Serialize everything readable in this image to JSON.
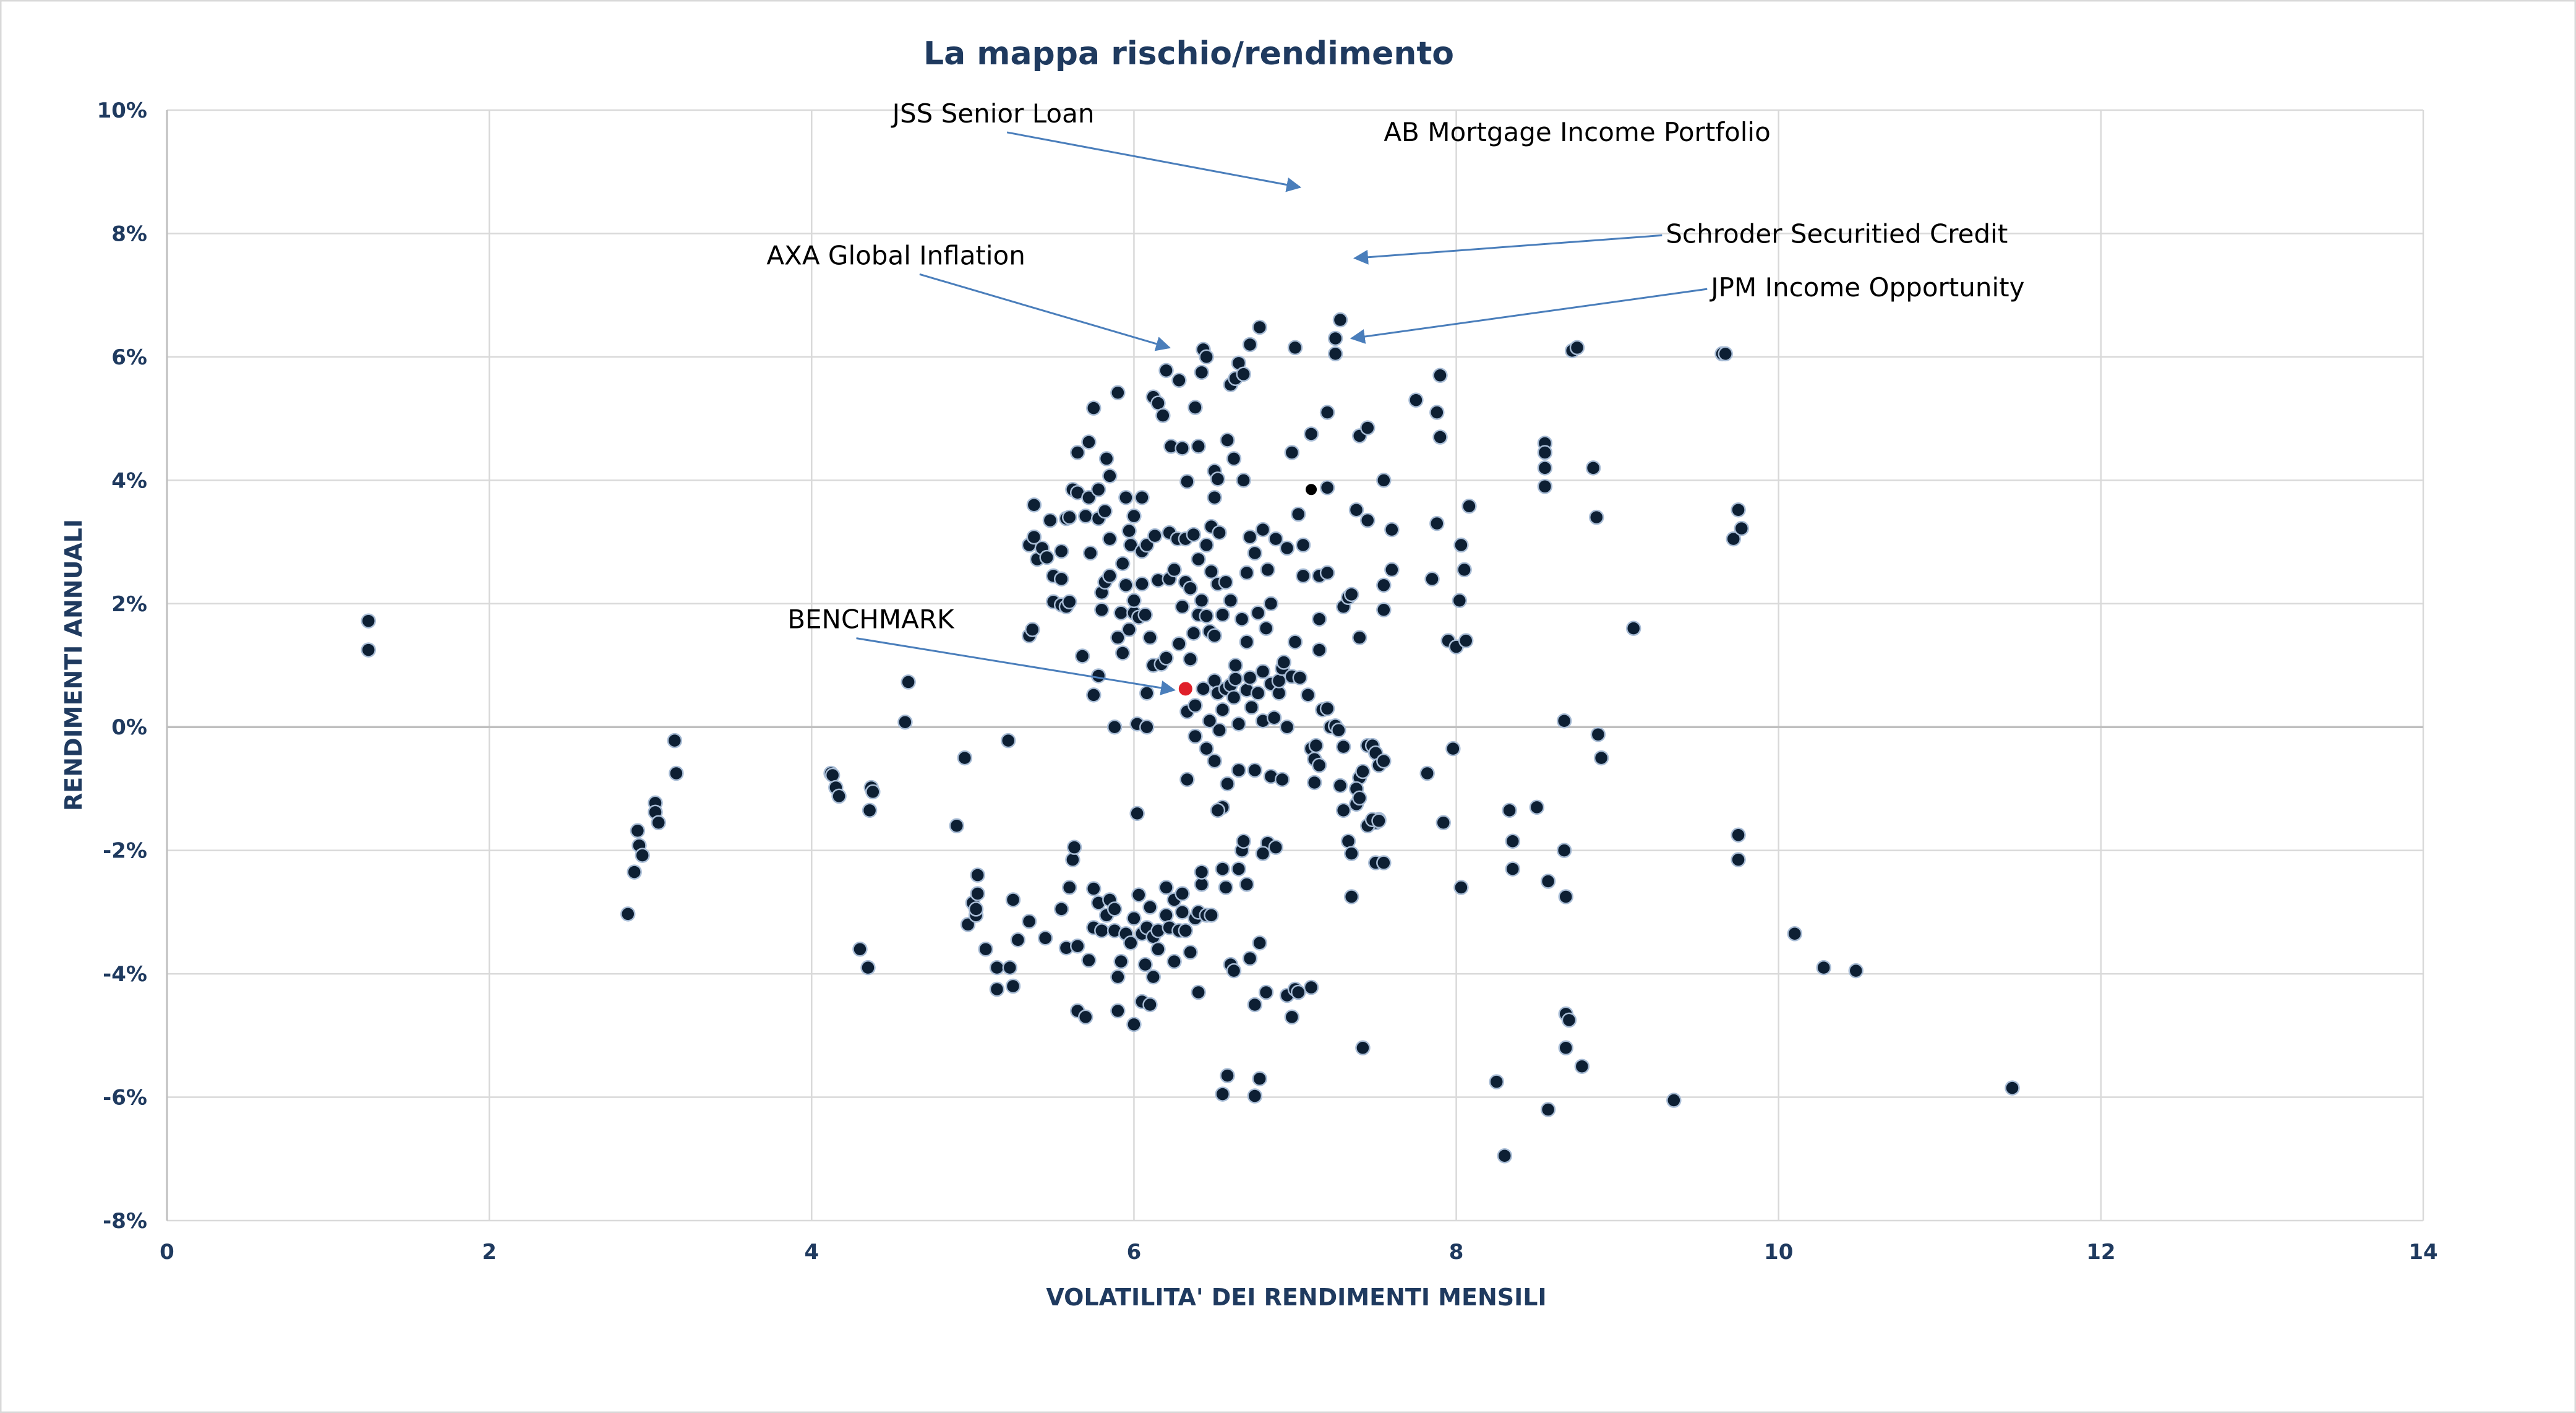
{
  "chart_data": {
    "type": "scatter",
    "title": "La mappa rischio/rendimento",
    "xlabel": "VOLATILITA' DEI RENDIMENTI MENSILI",
    "ylabel": "RENDIMENTI ANNUALI",
    "xlim": [
      0,
      14
    ],
    "ylim": [
      -8,
      10
    ],
    "x_ticks": [
      "0",
      "2",
      "4",
      "6",
      "8",
      "10",
      "12",
      "14"
    ],
    "y_ticks": [
      "10%",
      "8%",
      "6%",
      "4%",
      "2%",
      "0%",
      "-2%",
      "-4%",
      "-6%",
      "-8%"
    ],
    "grid": true,
    "colors": {
      "point": "#0d1f33",
      "point_edge": "#a9bdd6",
      "benchmark": "#e0202a",
      "arrow": "#4a7ebb",
      "grid": "#d9d9d9",
      "text": "#1f3a5f"
    },
    "points": [
      [
        1.25,
        1.72
      ],
      [
        1.25,
        1.25
      ],
      [
        2.86,
        -3.03
      ],
      [
        2.9,
        -2.35
      ],
      [
        2.92,
        -1.68
      ],
      [
        2.93,
        -1.92
      ],
      [
        2.95,
        -2.08
      ],
      [
        3.03,
        -1.23
      ],
      [
        3.03,
        -1.38
      ],
      [
        3.05,
        -1.55
      ],
      [
        3.15,
        -0.22
      ],
      [
        3.16,
        -0.75
      ],
      [
        4.12,
        -0.75
      ],
      [
        4.13,
        -0.78
      ],
      [
        4.15,
        -0.98
      ],
      [
        4.17,
        -1.12
      ],
      [
        4.3,
        -3.6
      ],
      [
        4.35,
        -3.9
      ],
      [
        4.36,
        -1.35
      ],
      [
        4.37,
        -0.98
      ],
      [
        4.38,
        -1.05
      ],
      [
        4.58,
        0.08
      ],
      [
        4.6,
        0.73
      ],
      [
        4.9,
        -1.6
      ],
      [
        4.95,
        -0.5
      ],
      [
        4.97,
        -3.2
      ],
      [
        5.0,
        -2.85
      ],
      [
        5.02,
        -3.05
      ],
      [
        5.02,
        -2.95
      ],
      [
        5.03,
        -2.7
      ],
      [
        5.03,
        -2.4
      ],
      [
        5.08,
        -3.6
      ],
      [
        5.15,
        -3.9
      ],
      [
        5.15,
        -4.25
      ],
      [
        5.22,
        -0.22
      ],
      [
        5.23,
        -3.9
      ],
      [
        5.25,
        -2.8
      ],
      [
        5.25,
        -4.2
      ],
      [
        5.28,
        -3.45
      ],
      [
        5.35,
        -3.15
      ],
      [
        5.35,
        1.48
      ],
      [
        5.37,
        1.58
      ],
      [
        5.35,
        2.95
      ],
      [
        5.38,
        3.08
      ],
      [
        5.38,
        3.6
      ],
      [
        5.4,
        2.72
      ],
      [
        5.43,
        2.9
      ],
      [
        5.46,
        2.75
      ],
      [
        5.48,
        3.35
      ],
      [
        5.5,
        2.45
      ],
      [
        5.5,
        2.03
      ],
      [
        5.55,
        1.98
      ],
      [
        5.55,
        2.85
      ],
      [
        5.55,
        2.4
      ],
      [
        5.58,
        1.95
      ],
      [
        5.58,
        3.38
      ],
      [
        5.6,
        3.4
      ],
      [
        5.6,
        2.03
      ],
      [
        5.45,
        -3.42
      ],
      [
        5.55,
        -2.95
      ],
      [
        5.58,
        -3.58
      ],
      [
        5.6,
        -2.6
      ],
      [
        5.62,
        -2.15
      ],
      [
        5.63,
        -1.95
      ],
      [
        5.65,
        -3.55
      ],
      [
        5.65,
        -4.6
      ],
      [
        5.7,
        -4.7
      ],
      [
        5.72,
        -3.78
      ],
      [
        5.62,
        3.85
      ],
      [
        5.65,
        3.8
      ],
      [
        5.65,
        4.45
      ],
      [
        5.68,
        1.15
      ],
      [
        5.7,
        3.42
      ],
      [
        5.72,
        3.72
      ],
      [
        5.72,
        4.62
      ],
      [
        5.73,
        2.82
      ],
      [
        5.75,
        5.17
      ],
      [
        5.75,
        0.52
      ],
      [
        5.78,
        0.83
      ],
      [
        5.78,
        3.38
      ],
      [
        5.78,
        3.85
      ],
      [
        5.8,
        1.9
      ],
      [
        5.8,
        2.18
      ],
      [
        5.82,
        3.5
      ],
      [
        5.82,
        2.35
      ],
      [
        5.83,
        4.35
      ],
      [
        5.85,
        3.05
      ],
      [
        5.85,
        4.07
      ],
      [
        5.85,
        2.45
      ],
      [
        5.75,
        -3.25
      ],
      [
        5.75,
        -2.62
      ],
      [
        5.78,
        -2.85
      ],
      [
        5.8,
        -3.3
      ],
      [
        5.83,
        -3.05
      ],
      [
        5.85,
        -2.8
      ],
      [
        5.88,
        -3.3
      ],
      [
        5.88,
        -2.95
      ],
      [
        5.9,
        -4.05
      ],
      [
        5.92,
        -3.8
      ],
      [
        5.9,
        -4.6
      ],
      [
        5.95,
        -3.35
      ],
      [
        5.88,
        0.0
      ],
      [
        5.9,
        5.42
      ],
      [
        5.9,
        1.45
      ],
      [
        5.92,
        1.85
      ],
      [
        5.93,
        1.2
      ],
      [
        5.93,
        2.65
      ],
      [
        5.95,
        3.72
      ],
      [
        5.95,
        2.3
      ],
      [
        5.97,
        3.18
      ],
      [
        5.97,
        1.58
      ],
      [
        5.98,
        2.95
      ],
      [
        6.0,
        1.85
      ],
      [
        6.0,
        3.42
      ],
      [
        6.0,
        2.05
      ],
      [
        6.02,
        0.05
      ],
      [
        6.02,
        -1.4
      ],
      [
        6.03,
        1.78
      ],
      [
        6.05,
        2.32
      ],
      [
        6.05,
        2.85
      ],
      [
        6.05,
        3.72
      ],
      [
        6.07,
        1.82
      ],
      [
        5.98,
        -3.5
      ],
      [
        6.0,
        -3.1
      ],
      [
        6.0,
        -4.82
      ],
      [
        6.03,
        -2.72
      ],
      [
        6.05,
        -3.35
      ],
      [
        6.05,
        -4.45
      ],
      [
        6.07,
        -3.85
      ],
      [
        6.08,
        -3.25
      ],
      [
        6.1,
        -2.92
      ],
      [
        6.1,
        -4.5
      ],
      [
        6.12,
        -3.4
      ],
      [
        6.12,
        -4.05
      ],
      [
        6.15,
        -3.3
      ],
      [
        6.15,
        -3.6
      ],
      [
        6.2,
        -2.6
      ],
      [
        6.2,
        -3.05
      ],
      [
        6.22,
        -3.25
      ],
      [
        6.25,
        -2.8
      ],
      [
        6.25,
        -3.8
      ],
      [
        6.28,
        -3.3
      ],
      [
        6.3,
        -3.0
      ],
      [
        6.3,
        -2.7
      ],
      [
        6.32,
        -3.3
      ],
      [
        6.35,
        -3.65
      ],
      [
        6.38,
        -3.1
      ],
      [
        6.4,
        -3.0
      ],
      [
        6.4,
        -4.3
      ],
      [
        6.42,
        -2.55
      ],
      [
        6.42,
        -2.35
      ],
      [
        6.45,
        -3.05
      ],
      [
        6.48,
        -3.05
      ],
      [
        6.08,
        2.95
      ],
      [
        6.08,
        0.0
      ],
      [
        6.08,
        0.55
      ],
      [
        6.1,
        1.45
      ],
      [
        6.12,
        5.35
      ],
      [
        6.12,
        1.0
      ],
      [
        6.13,
        3.1
      ],
      [
        6.15,
        5.25
      ],
      [
        6.15,
        2.38
      ],
      [
        6.17,
        1.02
      ],
      [
        6.18,
        5.05
      ],
      [
        6.2,
        1.12
      ],
      [
        6.2,
        5.78
      ],
      [
        6.22,
        2.4
      ],
      [
        6.22,
        3.15
      ],
      [
        6.23,
        4.55
      ],
      [
        6.25,
        2.55
      ],
      [
        6.27,
        3.05
      ],
      [
        6.28,
        1.35
      ],
      [
        6.28,
        5.62
      ],
      [
        6.3,
        4.52
      ],
      [
        6.3,
        1.95
      ],
      [
        6.32,
        2.35
      ],
      [
        6.32,
        3.05
      ],
      [
        6.33,
        0.25
      ],
      [
        6.33,
        -0.85
      ],
      [
        6.33,
        3.98
      ],
      [
        6.35,
        1.1
      ],
      [
        6.35,
        2.25
      ],
      [
        6.37,
        3.12
      ],
      [
        6.37,
        1.52
      ],
      [
        6.38,
        0.35
      ],
      [
        6.38,
        -0.15
      ],
      [
        6.38,
        5.18
      ],
      [
        6.4,
        4.55
      ],
      [
        6.4,
        1.82
      ],
      [
        6.4,
        2.72
      ],
      [
        6.42,
        5.75
      ],
      [
        6.42,
        2.05
      ],
      [
        6.43,
        6.12
      ],
      [
        6.43,
        0.62
      ],
      [
        6.45,
        1.8
      ],
      [
        6.45,
        2.95
      ],
      [
        6.45,
        -0.35
      ],
      [
        6.45,
        6.0
      ],
      [
        6.47,
        0.1
      ],
      [
        6.47,
        1.55
      ],
      [
        6.48,
        2.52
      ],
      [
        6.48,
        3.25
      ],
      [
        6.5,
        4.15
      ],
      [
        6.5,
        3.72
      ],
      [
        6.5,
        1.48
      ],
      [
        6.5,
        -0.55
      ],
      [
        6.5,
        0.75
      ],
      [
        6.52,
        4.02
      ],
      [
        6.52,
        0.55
      ],
      [
        6.52,
        2.32
      ],
      [
        6.53,
        3.15
      ],
      [
        6.53,
        -0.05
      ],
      [
        6.55,
        1.82
      ],
      [
        6.55,
        0.28
      ],
      [
        6.55,
        -1.3
      ],
      [
        6.57,
        2.35
      ],
      [
        6.57,
        0.62
      ],
      [
        6.58,
        4.65
      ],
      [
        6.58,
        -0.92
      ],
      [
        6.6,
        0.68
      ],
      [
        6.6,
        2.05
      ],
      [
        6.6,
        5.55
      ],
      [
        6.62,
        0.48
      ],
      [
        6.62,
        4.35
      ],
      [
        6.63,
        5.65
      ],
      [
        6.63,
        0.78
      ],
      [
        6.63,
        1.0
      ],
      [
        6.65,
        5.9
      ],
      [
        6.65,
        0.05
      ],
      [
        6.65,
        -0.7
      ],
      [
        6.67,
        -2.0
      ],
      [
        6.67,
        1.75
      ],
      [
        6.68,
        4.0
      ],
      [
        6.68,
        5.72
      ],
      [
        6.7,
        1.38
      ],
      [
        6.7,
        0.6
      ],
      [
        6.7,
        2.5
      ],
      [
        6.72,
        6.2
      ],
      [
        6.72,
        3.08
      ],
      [
        6.72,
        0.8
      ],
      [
        6.73,
        0.32
      ],
      [
        6.75,
        -0.7
      ],
      [
        6.75,
        2.82
      ],
      [
        6.77,
        0.55
      ],
      [
        6.77,
        1.85
      ],
      [
        6.78,
        6.48
      ],
      [
        6.8,
        3.2
      ],
      [
        6.8,
        0.1
      ],
      [
        6.8,
        0.9
      ],
      [
        6.82,
        1.6
      ],
      [
        6.83,
        -1.88
      ],
      [
        6.83,
        2.55
      ],
      [
        6.85,
        0.7
      ],
      [
        6.85,
        2.0
      ],
      [
        6.85,
        -0.8
      ],
      [
        6.87,
        0.15
      ],
      [
        6.88,
        3.05
      ],
      [
        6.88,
        -1.95
      ],
      [
        6.9,
        0.55
      ],
      [
        6.9,
        0.75
      ],
      [
        6.92,
        0.95
      ],
      [
        6.92,
        -0.85
      ],
      [
        6.93,
        1.05
      ],
      [
        6.95,
        2.9
      ],
      [
        6.95,
        0.0
      ],
      [
        6.52,
        -1.35
      ],
      [
        6.55,
        -2.3
      ],
      [
        6.57,
        -2.6
      ],
      [
        6.6,
        -3.85
      ],
      [
        6.62,
        -3.95
      ],
      [
        6.65,
        -2.3
      ],
      [
        6.68,
        -1.85
      ],
      [
        6.7,
        -2.55
      ],
      [
        6.72,
        -3.75
      ],
      [
        6.75,
        -4.5
      ],
      [
        6.78,
        -3.5
      ],
      [
        6.8,
        -2.05
      ],
      [
        6.82,
        -4.3
      ],
      [
        6.55,
        -5.95
      ],
      [
        6.58,
        -5.65
      ],
      [
        6.75,
        -5.98
      ],
      [
        6.78,
        -5.7
      ],
      [
        6.95,
        -4.35
      ],
      [
        6.98,
        -4.7
      ],
      [
        7.0,
        -4.25
      ],
      [
        7.02,
        -4.3
      ],
      [
        7.1,
        -4.22
      ],
      [
        6.98,
        0.82
      ],
      [
        7.0,
        1.38
      ],
      [
        7.03,
        0.8
      ],
      [
        7.05,
        2.45
      ],
      [
        7.08,
        0.52
      ],
      [
        7.1,
        -0.35
      ],
      [
        7.12,
        -0.52
      ],
      [
        7.15,
        -0.62
      ],
      [
        7.17,
        0.28
      ],
      [
        7.2,
        0.3
      ],
      [
        7.22,
        0.0
      ],
      [
        7.25,
        0.02
      ],
      [
        7.27,
        -0.05
      ],
      [
        7.28,
        -0.95
      ],
      [
        7.3,
        -1.35
      ],
      [
        7.33,
        -1.85
      ],
      [
        7.35,
        -2.05
      ],
      [
        7.38,
        -1.25
      ],
      [
        7.4,
        -0.82
      ],
      [
        7.42,
        -0.72
      ],
      [
        7.45,
        -0.3
      ],
      [
        7.48,
        -0.3
      ],
      [
        7.5,
        -0.42
      ],
      [
        7.52,
        -0.62
      ],
      [
        7.55,
        -0.55
      ],
      [
        6.98,
        4.45
      ],
      [
        7.0,
        6.15
      ],
      [
        7.02,
        3.45
      ],
      [
        7.05,
        2.95
      ],
      [
        7.1,
        4.75
      ],
      [
        7.15,
        2.45
      ],
      [
        7.15,
        1.75
      ],
      [
        7.15,
        1.25
      ],
      [
        7.2,
        2.5
      ],
      [
        7.2,
        5.1
      ],
      [
        7.25,
        6.3
      ],
      [
        7.25,
        6.05
      ],
      [
        7.28,
        6.6
      ],
      [
        7.3,
        1.95
      ],
      [
        7.3,
        -0.32
      ],
      [
        7.33,
        2.1
      ],
      [
        7.35,
        2.15
      ],
      [
        7.38,
        3.52
      ],
      [
        7.4,
        4.72
      ],
      [
        7.4,
        1.45
      ],
      [
        7.45,
        3.35
      ],
      [
        7.45,
        4.85
      ],
      [
        7.5,
        -1.55
      ],
      [
        7.52,
        -1.5
      ],
      [
        7.55,
        2.3
      ],
      [
        7.55,
        1.9
      ],
      [
        7.55,
        4.0
      ],
      [
        7.6,
        3.2
      ],
      [
        7.6,
        2.55
      ],
      [
        7.38,
        -1.0
      ],
      [
        7.4,
        -1.15
      ],
      [
        7.45,
        -1.6
      ],
      [
        7.48,
        -1.5
      ],
      [
        7.5,
        -2.2
      ],
      [
        7.52,
        -1.52
      ],
      [
        7.55,
        -2.2
      ],
      [
        7.35,
        -2.75
      ],
      [
        7.42,
        -5.2
      ],
      [
        7.2,
        3.88
      ],
      [
        7.12,
        -0.9
      ],
      [
        7.13,
        -0.3
      ],
      [
        7.75,
        5.3
      ],
      [
        7.82,
        -0.75
      ],
      [
        7.85,
        2.4
      ],
      [
        7.88,
        3.3
      ],
      [
        7.88,
        5.1
      ],
      [
        7.9,
        4.7
      ],
      [
        7.9,
        5.7
      ],
      [
        7.92,
        -1.55
      ],
      [
        7.95,
        1.4
      ],
      [
        7.98,
        -0.35
      ],
      [
        8.0,
        1.3
      ],
      [
        8.02,
        2.05
      ],
      [
        8.03,
        2.95
      ],
      [
        8.05,
        2.55
      ],
      [
        8.06,
        1.4
      ],
      [
        8.08,
        3.58
      ],
      [
        8.03,
        -2.6
      ],
      [
        8.25,
        -5.75
      ],
      [
        8.3,
        -6.95
      ],
      [
        8.33,
        -1.35
      ],
      [
        8.35,
        -1.85
      ],
      [
        8.35,
        -2.3
      ],
      [
        8.5,
        -1.3
      ],
      [
        8.55,
        4.6
      ],
      [
        8.55,
        4.45
      ],
      [
        8.55,
        4.2
      ],
      [
        8.55,
        3.9
      ],
      [
        8.57,
        -2.5
      ],
      [
        8.57,
        -6.2
      ],
      [
        8.67,
        0.1
      ],
      [
        8.67,
        -2.0
      ],
      [
        8.68,
        -2.75
      ],
      [
        8.68,
        -4.65
      ],
      [
        8.7,
        -4.75
      ],
      [
        8.68,
        -5.2
      ],
      [
        8.72,
        6.1
      ],
      [
        8.75,
        6.15
      ],
      [
        8.78,
        -5.5
      ],
      [
        8.85,
        4.2
      ],
      [
        8.87,
        3.4
      ],
      [
        8.88,
        -0.12
      ],
      [
        8.9,
        -0.5
      ],
      [
        9.1,
        1.6
      ],
      [
        9.35,
        -6.05
      ],
      [
        9.65,
        6.05
      ],
      [
        9.67,
        6.05
      ],
      [
        9.72,
        3.05
      ],
      [
        9.75,
        -1.75
      ],
      [
        9.75,
        -2.15
      ],
      [
        9.75,
        3.52
      ],
      [
        9.77,
        3.22
      ],
      [
        10.1,
        -3.35
      ],
      [
        10.28,
        -3.9
      ],
      [
        10.48,
        -3.95
      ],
      [
        11.45,
        -5.85
      ]
    ],
    "highlight_points": [
      {
        "x": 7.1,
        "y": 3.85,
        "color": "#000000"
      }
    ],
    "benchmark": {
      "x": 6.32,
      "y": 0.62
    },
    "annotations": [
      {
        "text": "JSS Senior Loan",
        "label_x": 4.5,
        "label_y": 9.8,
        "target_x": 7.03,
        "target_y": 8.75
      },
      {
        "text": "AB Mortgage Income Portfolio",
        "label_x": 7.55,
        "label_y": 9.5,
        "target_x": null,
        "target_y": null
      },
      {
        "text": "Schroder Securitied Credit",
        "label_x": 9.3,
        "label_y": 7.85,
        "target_x": 7.37,
        "target_y": 7.6
      },
      {
        "text": "AXA Global Inflation",
        "label_x": 3.72,
        "label_y": 7.5,
        "target_x": 6.22,
        "target_y": 6.15
      },
      {
        "text": "JPM Income Opportunity",
        "label_x": 9.58,
        "label_y": 6.98,
        "target_x": 7.35,
        "target_y": 6.3
      },
      {
        "text": "BENCHMARK",
        "label_x": 3.85,
        "label_y": 1.6,
        "target_x": 6.25,
        "target_y": 0.6,
        "color": "#e0202a"
      }
    ]
  }
}
